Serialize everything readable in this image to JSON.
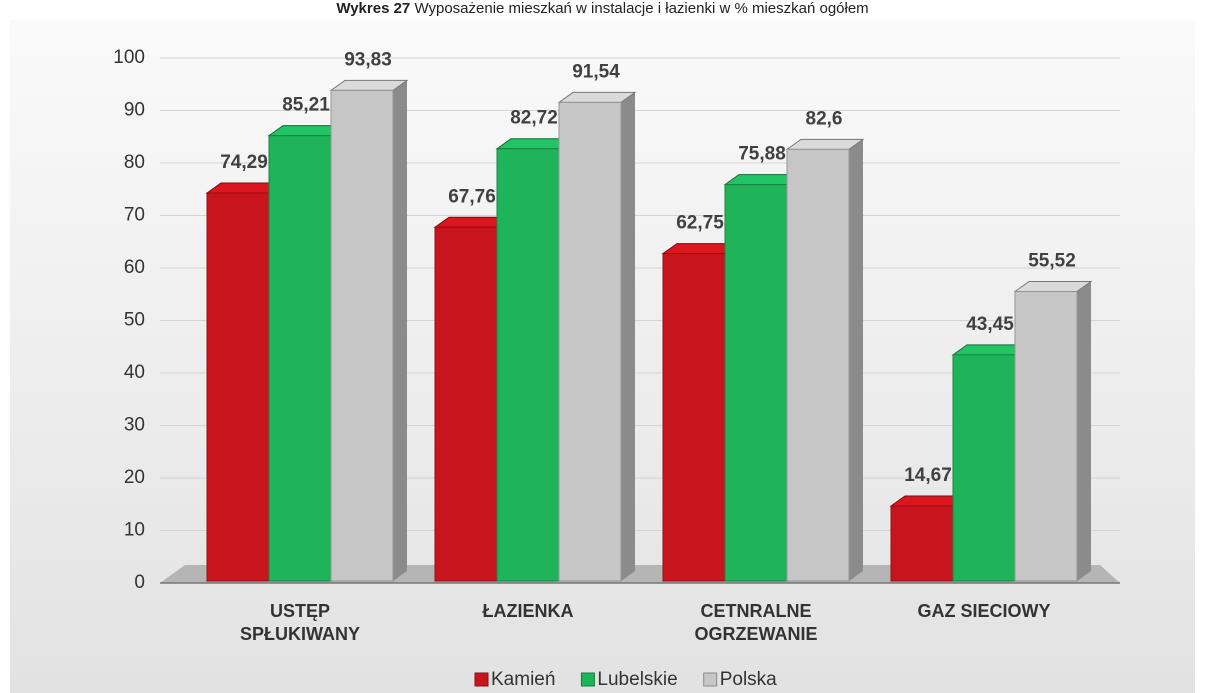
{
  "chart_data": {
    "type": "bar3d",
    "title_label": "Wykres 27",
    "title": "Wyposażenie mieszkań w instalacje i łazienki w % mieszkań ogółem",
    "categories": [
      "USTĘP SPŁUKIWANY",
      "ŁAZIENKA",
      "CETNRALNE OGRZEWANIE",
      "GAZ SIECIOWY"
    ],
    "series": [
      {
        "name": "Kamień",
        "color": "#c8141c",
        "values": [
          74.29,
          67.76,
          62.75,
          14.67
        ],
        "value_labels": [
          "74,29",
          "67,76",
          "62,75",
          "14,67"
        ]
      },
      {
        "name": "Lubelskie",
        "color": "#1fb35a",
        "values": [
          85.21,
          82.72,
          75.88,
          43.45
        ],
        "value_labels": [
          "85,21",
          "82,72",
          "75,88",
          "43,45"
        ]
      },
      {
        "name": "Polska",
        "color": "#c6c6c6",
        "values": [
          93.83,
          91.54,
          82.6,
          55.52
        ],
        "value_labels": [
          "93,83",
          "91,54",
          "82,6",
          "55,52"
        ]
      }
    ],
    "ylim": [
      0,
      100
    ],
    "yticks": [
      0,
      10,
      20,
      30,
      40,
      50,
      60,
      70,
      80,
      90,
      100
    ],
    "grid": true,
    "legend": "bottom"
  }
}
